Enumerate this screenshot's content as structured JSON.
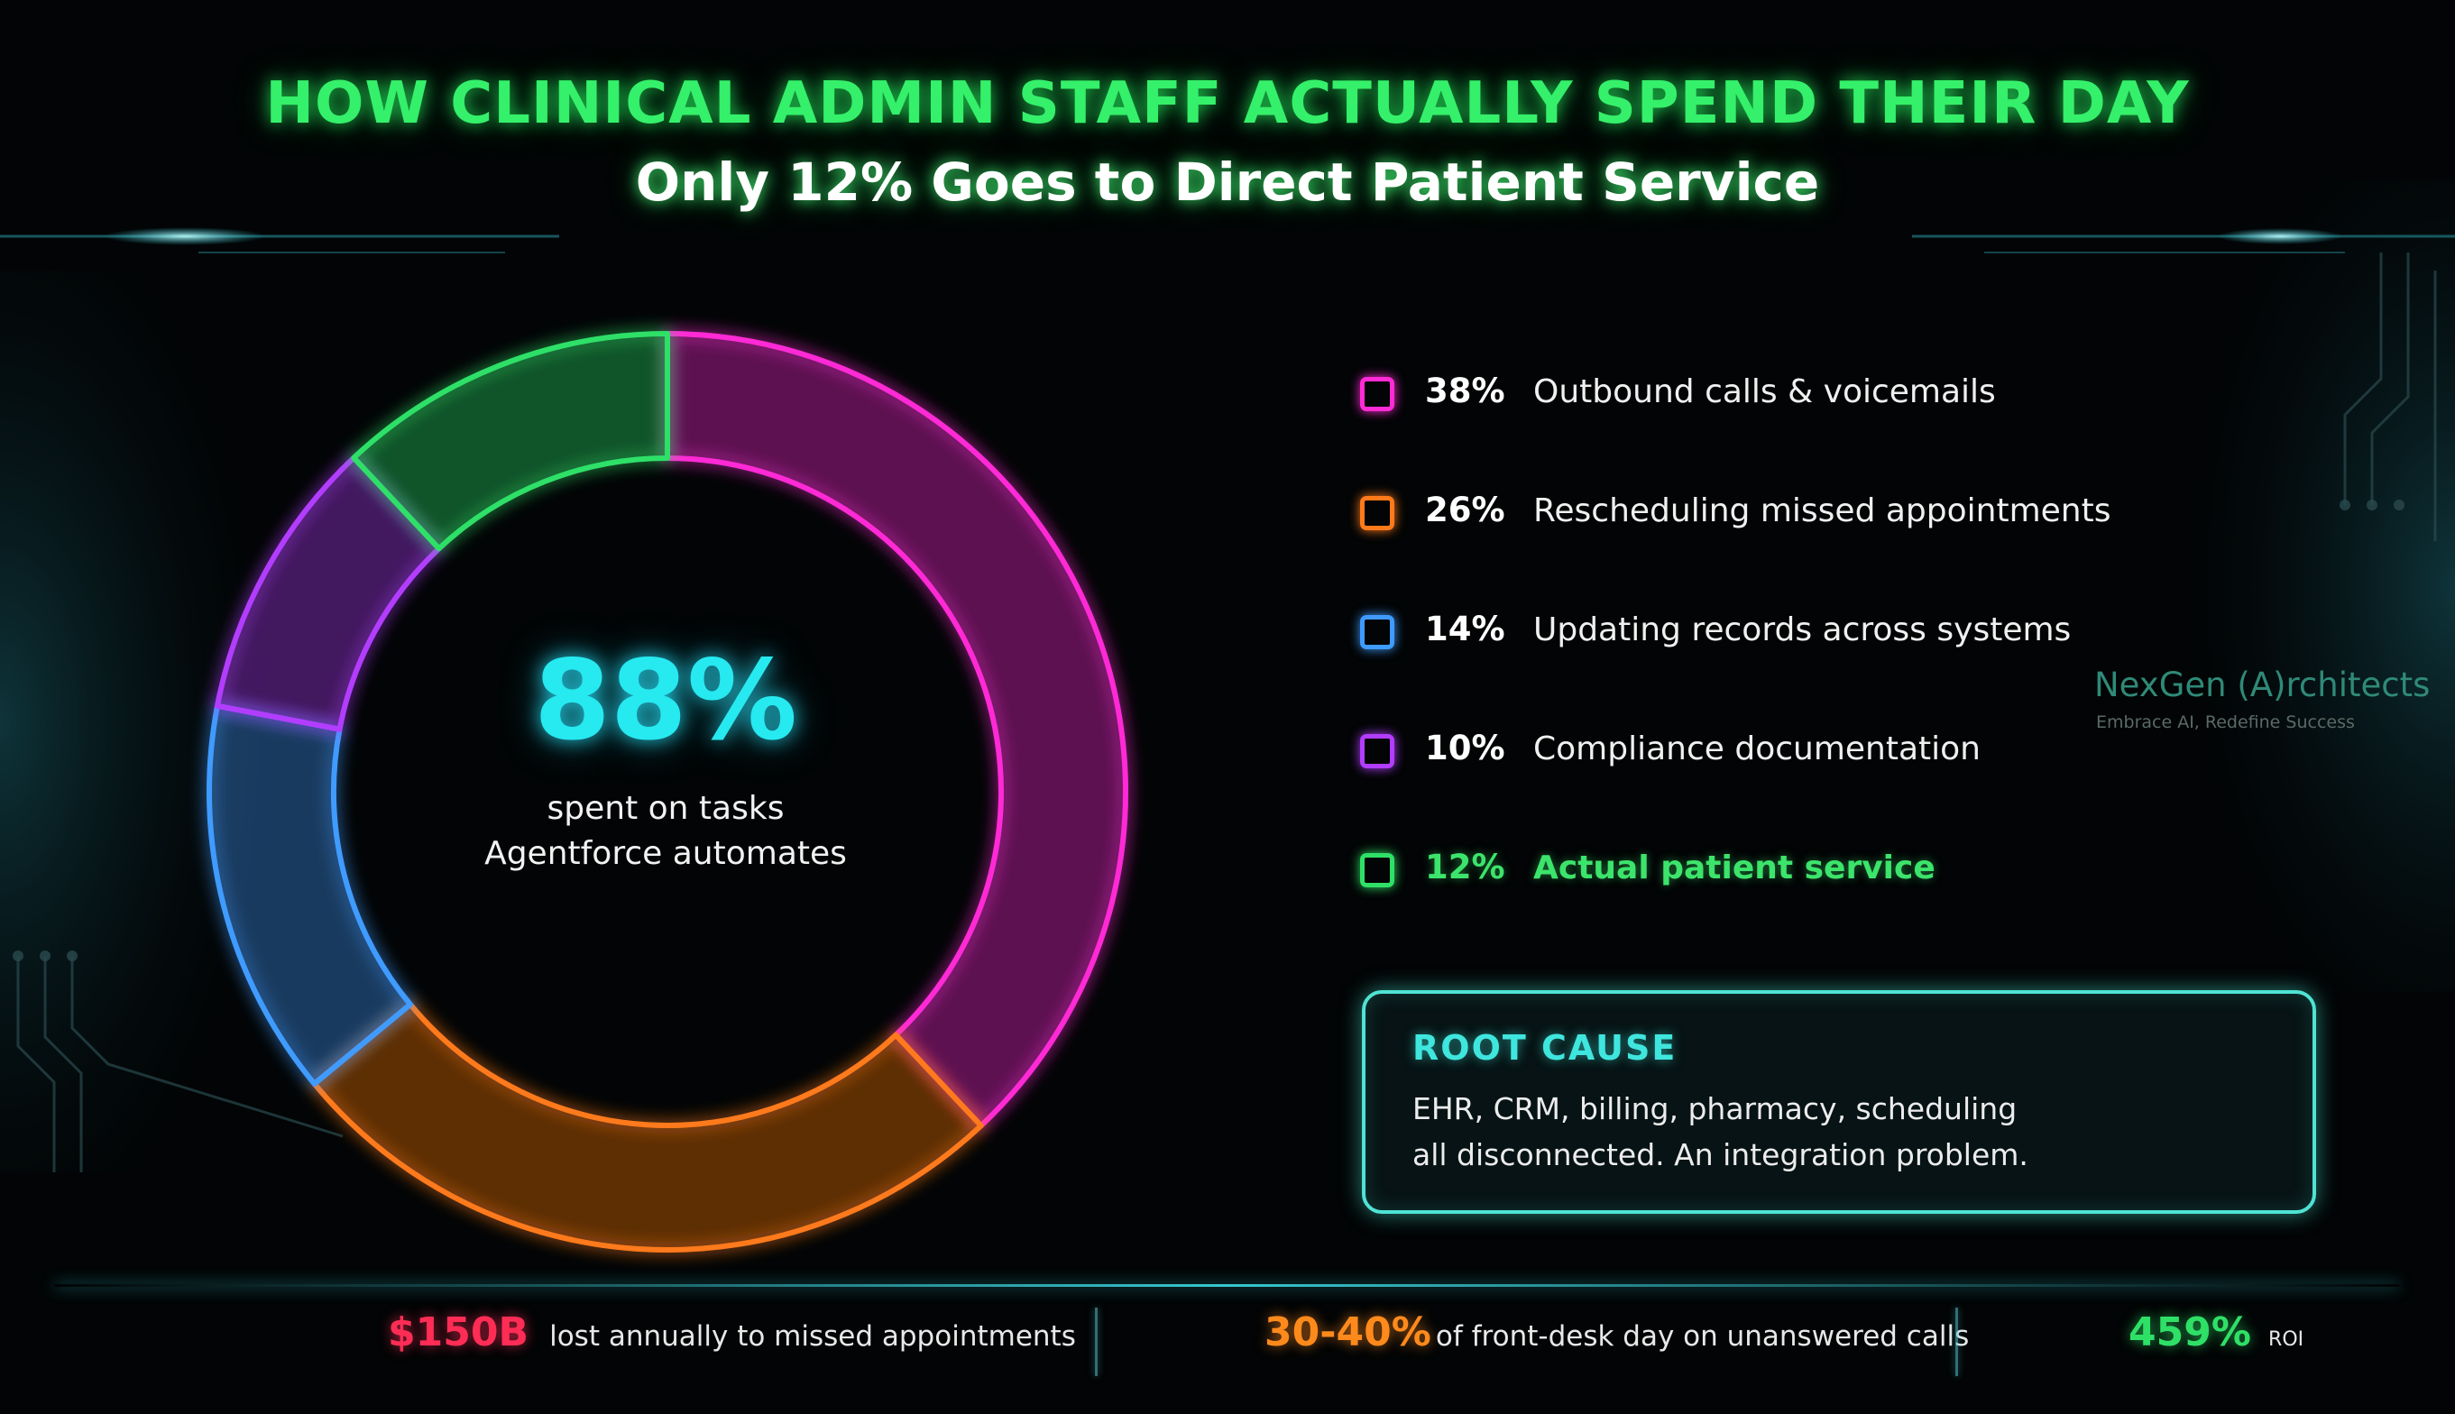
{
  "header": {
    "title": "HOW CLINICAL ADMIN STAFF ACTUALLY SPEND THEIR DAY",
    "subtitle": "Only 12% Goes to Direct Patient Service"
  },
  "chart_data": {
    "type": "pie",
    "title": "HOW CLINICAL ADMIN STAFF ACTUALLY SPEND THEIR DAY",
    "subtitle": "Only 12% Goes to Direct Patient Service",
    "legend_position": "right",
    "center": {
      "value": "88%",
      "caption_line1": "spent on tasks",
      "caption_line2": "Agentforce automates"
    },
    "slices": [
      {
        "label": "Outbound calls & voicemails",
        "display": "38%",
        "value": 38,
        "color": "#ff2bd6"
      },
      {
        "label": "Rescheduling missed appointments",
        "display": "26%",
        "value": 26,
        "color": "#ff7a1a"
      },
      {
        "label": "Updating records across systems",
        "display": "14%",
        "value": 14,
        "color": "#3f9bff"
      },
      {
        "label": "Compliance documentation",
        "display": "10%",
        "value": 10,
        "color": "#b23dff"
      },
      {
        "label": "Actual patient service",
        "display": "12%",
        "value": 12,
        "color": "#2fe067"
      }
    ]
  },
  "root_cause": {
    "title": "ROOT CAUSE",
    "line1": "EHR, CRM, billing, pharmacy, scheduling",
    "line2": "all disconnected. An integration problem."
  },
  "footer": {
    "stats": [
      {
        "value": "$150B",
        "text": "lost annually to missed appointments",
        "color": "#ff2d55"
      },
      {
        "value": "30-40%",
        "text": "of front-desk day on unanswered calls",
        "color": "#ff8a1c"
      },
      {
        "value": "459%",
        "text": "ROI",
        "color": "#2fe067"
      }
    ]
  },
  "brand": {
    "name": "NexGen (A)rchitects",
    "tagline": "Embrace AI, Redefine Success"
  }
}
